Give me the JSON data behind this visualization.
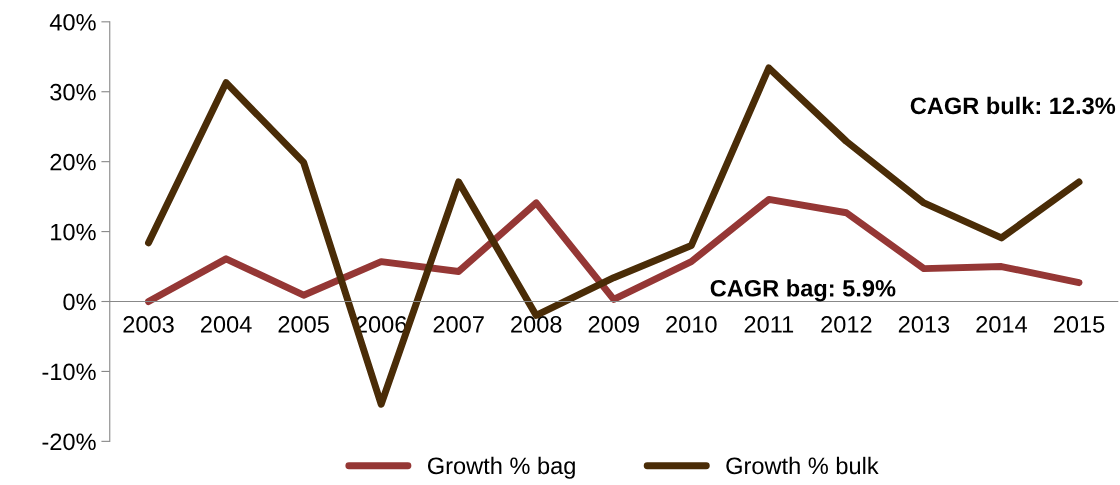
{
  "chart_data": {
    "type": "line",
    "categories": [
      "2003",
      "2004",
      "2005",
      "2006",
      "2007",
      "2008",
      "2009",
      "2010",
      "2011",
      "2012",
      "2013",
      "2014",
      "2015"
    ],
    "series": [
      {
        "name": "Growth % bag",
        "color": "#953735",
        "values": [
          0.0,
          6.1,
          0.9,
          5.7,
          4.3,
          14.1,
          0.3,
          5.7,
          14.6,
          12.7,
          4.7,
          5.0,
          2.7
        ]
      },
      {
        "name": "Growth % bulk",
        "color": "#4a2c07",
        "values": [
          8.4,
          31.3,
          19.9,
          -14.7,
          17.1,
          -2.0,
          3.4,
          8.0,
          33.4,
          22.9,
          14.1,
          9.1,
          17.1
        ]
      }
    ],
    "ylim": [
      -20,
      40
    ],
    "yticks": [
      {
        "value": -20,
        "label": "-20%"
      },
      {
        "value": -10,
        "label": "-10%"
      },
      {
        "value": 0,
        "label": "0%"
      },
      {
        "value": 10,
        "label": "10%"
      },
      {
        "value": 20,
        "label": "20%"
      },
      {
        "value": 30,
        "label": "30%"
      },
      {
        "value": 40,
        "label": "40%"
      }
    ],
    "annotations": [
      "CAGR bulk: 12.3%",
      "CAGR bag: 5.9%"
    ],
    "grid": false,
    "legend": "bottom",
    "marker": "none",
    "line_style": "solid"
  }
}
